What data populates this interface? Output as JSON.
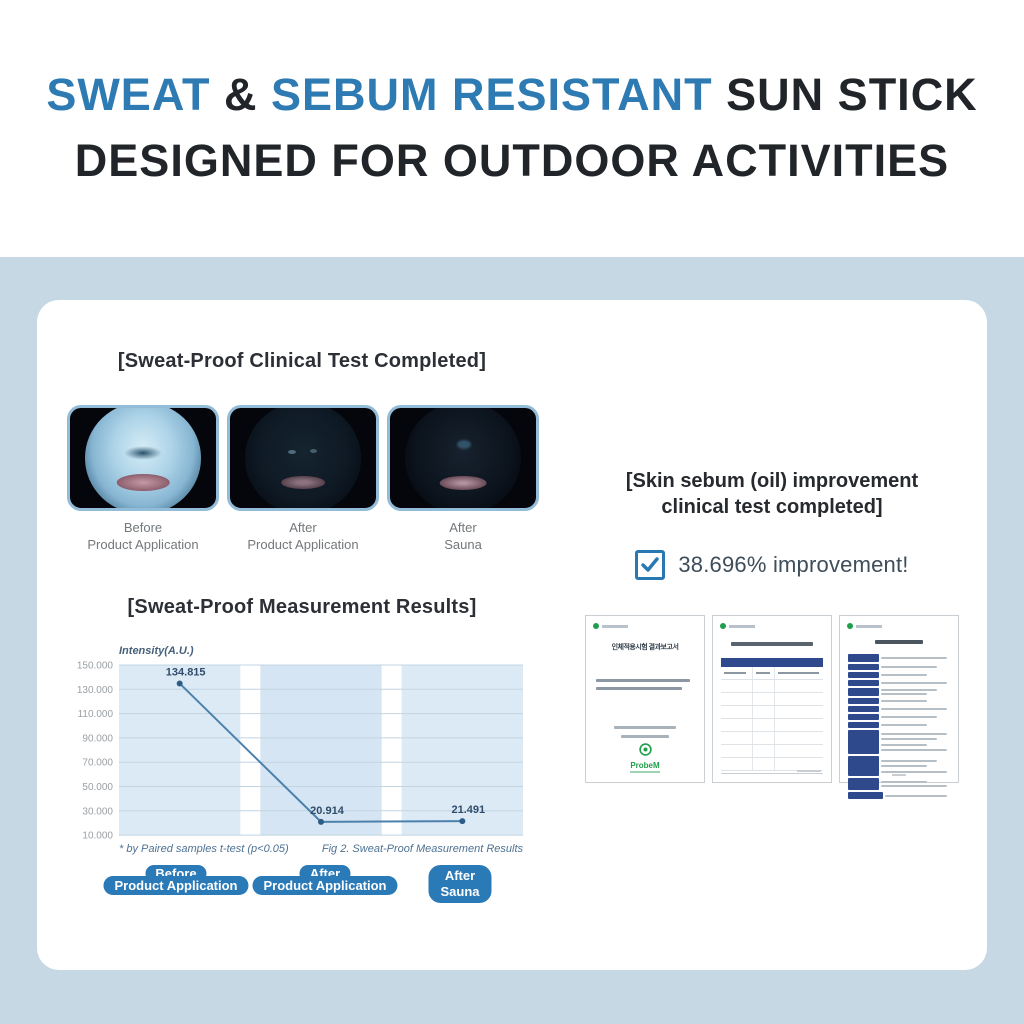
{
  "header": {
    "line1": [
      {
        "text": "SWEAT ",
        "color": "blue"
      },
      {
        "text": "& ",
        "color": "dark"
      },
      {
        "text": "SEBUM RESISTANT ",
        "color": "blue"
      },
      {
        "text": "SUN STICK",
        "color": "dark"
      }
    ],
    "line2": "DESIGNED FOR OUTDOOR ACTIVITIES"
  },
  "left_panel": {
    "heading": "[Sweat-Proof Clinical Test Completed]",
    "photos": [
      {
        "label1": "Before",
        "label2": "Product Application"
      },
      {
        "label1": "After",
        "label2": "Product Application"
      },
      {
        "label1": "After",
        "label2": "Sauna"
      }
    ],
    "chart_heading": "[Sweat-Proof Measurement Results]",
    "footnote_left": "* by Paired samples t-test (p<0.05)",
    "footnote_right": "Fig 2. Sweat-Proof Measurement Results",
    "badges": [
      {
        "line1": "Before",
        "line2": "Product Application"
      },
      {
        "line1": "After",
        "line2": "Product Application"
      },
      {
        "line1": "After",
        "line2": "Sauna"
      }
    ]
  },
  "chart_data": {
    "type": "line",
    "title": "[Sweat-Proof Measurement Results]",
    "ylabel": "Intensity(A.U.)",
    "categories": [
      "Before Product Application",
      "After Product Application",
      "After Sauna"
    ],
    "values": [
      134815,
      20914,
      21491
    ],
    "value_labels": [
      "134.815",
      "20.914",
      "21.491"
    ],
    "yticks": [
      "150.000",
      "130.000",
      "110.000",
      "90.000",
      "70.000",
      "50.000",
      "30.000",
      "10.000"
    ],
    "ytick_values": [
      150000,
      130000,
      110000,
      90000,
      70000,
      50000,
      30000,
      10000
    ],
    "ylim": [
      10000,
      150000
    ],
    "grid": true,
    "legend": "none",
    "line_color": "#4c81ac",
    "band_color": "#dceaf6"
  },
  "right_panel": {
    "heading_line1": "[Skin sebum (oil) improvement",
    "heading_line2": "clinical test completed]",
    "improvement_text": "38.696% improvement!",
    "documents": [
      {
        "title": "인체적용시험 결과보고서",
        "logo_text": "ProbeM"
      },
      {
        "title": ""
      },
      {
        "title": ""
      }
    ]
  },
  "colors": {
    "accent_blue": "#2e7ab2",
    "badge_blue": "#2b7ab8",
    "check_blue": "#2778b3",
    "doc_navy": "#2e4a8c",
    "logo_green": "#1f9e4b",
    "page_bg_blue": "#c6d8e4"
  }
}
